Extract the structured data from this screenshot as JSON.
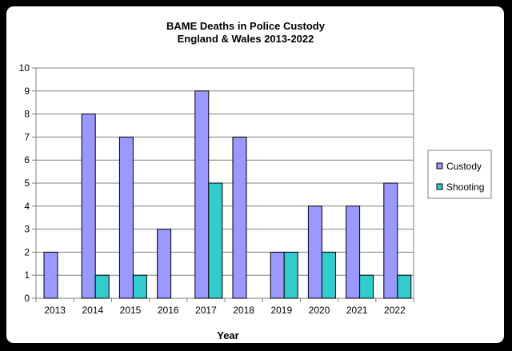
{
  "chart_data": {
    "type": "bar",
    "title": "BAME Deaths in Police Custody",
    "subtitle": "England & Wales 2013-2022",
    "xlabel": "Year",
    "ylabel": "",
    "ylim": [
      0,
      10
    ],
    "yticks": [
      "0",
      "1",
      "2",
      "3",
      "4",
      "5",
      "6",
      "7",
      "8",
      "9",
      "10"
    ],
    "grid": true,
    "legend_position": "right",
    "categories": [
      "2013",
      "2014",
      "2015",
      "2016",
      "2017",
      "2018",
      "2019",
      "2020",
      "2021",
      "2022"
    ],
    "series": [
      {
        "name": "Custody",
        "color": "#9999ff",
        "values": [
          2,
          8,
          7,
          3,
          9,
          7,
          2,
          4,
          4,
          5
        ]
      },
      {
        "name": "Shooting",
        "color": "#33cccc",
        "values": [
          0,
          1,
          1,
          0,
          5,
          0,
          2,
          2,
          1,
          1
        ]
      }
    ]
  }
}
